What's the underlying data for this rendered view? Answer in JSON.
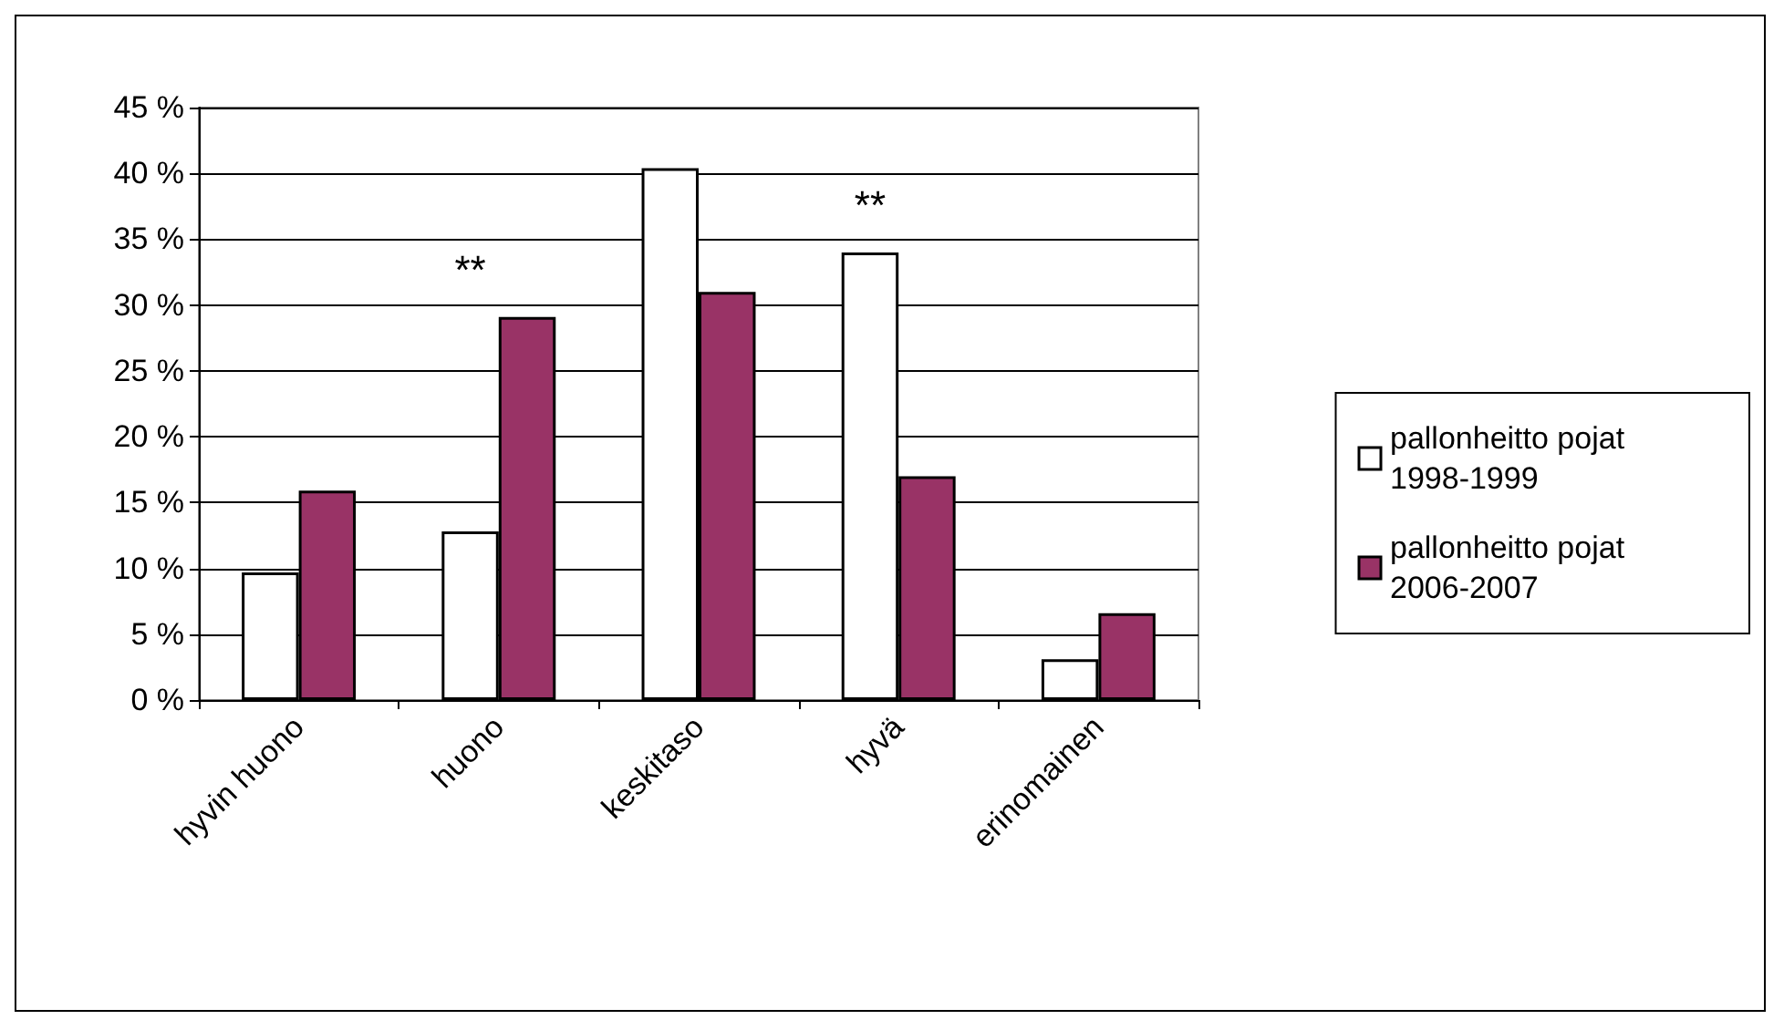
{
  "chart_data": {
    "type": "bar",
    "categories": [
      "hyvin huono",
      "huono",
      "keskitaso",
      "hyvä",
      "erinomainen"
    ],
    "series": [
      {
        "name": "pallonheitto pojat 1998-1999",
        "color": "#ffffff",
        "values": [
          9.7,
          12.8,
          40.4,
          34.0,
          3.1
        ]
      },
      {
        "name": "pallonheitto pojat 2006-2007",
        "color": "#993366",
        "values": [
          15.9,
          29.1,
          31.0,
          17.0,
          6.6
        ]
      }
    ],
    "ylim": [
      0,
      45
    ],
    "yticks": [
      {
        "value": 0,
        "label": "0 %"
      },
      {
        "value": 5,
        "label": "5 %"
      },
      {
        "value": 10,
        "label": "10 %"
      },
      {
        "value": 15,
        "label": "15 %"
      },
      {
        "value": 20,
        "label": "20 %"
      },
      {
        "value": 25,
        "label": "25 %"
      },
      {
        "value": 30,
        "label": "30 %"
      },
      {
        "value": 35,
        "label": "35 %"
      },
      {
        "value": 40,
        "label": "40 %"
      },
      {
        "value": 45,
        "label": "45 %"
      }
    ],
    "annotations": [
      "**",
      "**"
    ],
    "grid": "y",
    "legend": "right"
  }
}
